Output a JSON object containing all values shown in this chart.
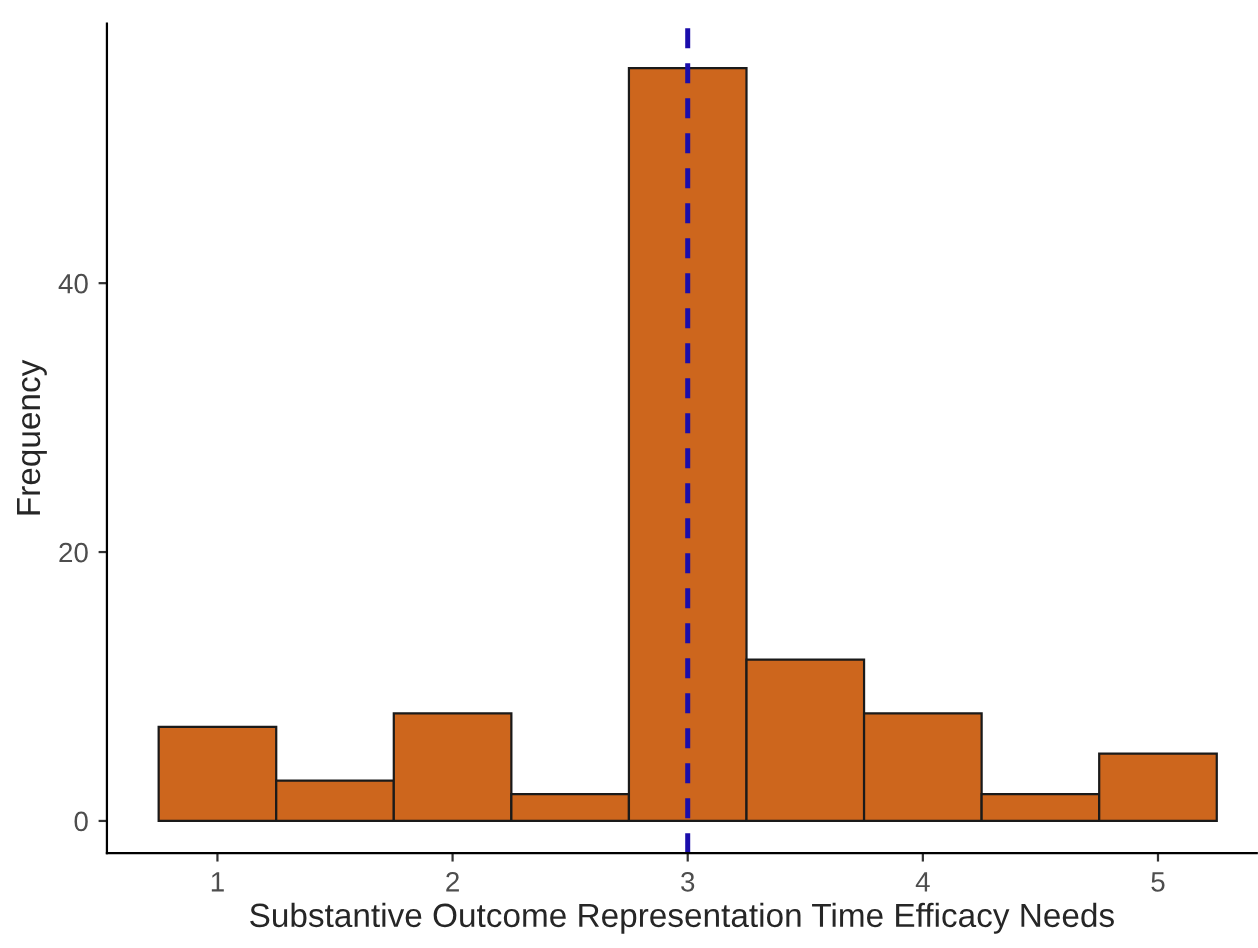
{
  "chart_data": {
    "type": "histogram",
    "xlabel": "Substantive Outcome Representation Time Efficacy Needs",
    "ylabel": "Frequency",
    "bins": [
      0.75,
      1.25,
      1.75,
      2.25,
      2.75,
      3.25,
      3.75,
      4.25,
      4.75,
      5.25
    ],
    "values": [
      7,
      3,
      8,
      2,
      56,
      12,
      8,
      2,
      5
    ],
    "color": "#cd661d",
    "xlim": [
      0.53,
      5.42
    ],
    "ylim": [
      -2.4,
      59.3
    ],
    "xticks": [
      1,
      2,
      3,
      4,
      5
    ],
    "yticks": [
      0,
      20,
      40
    ],
    "ref_lines": [
      {
        "axis": "x",
        "value": 3,
        "color": "#1a0dab",
        "line_style": "dashed"
      }
    ],
    "grid": false
  }
}
